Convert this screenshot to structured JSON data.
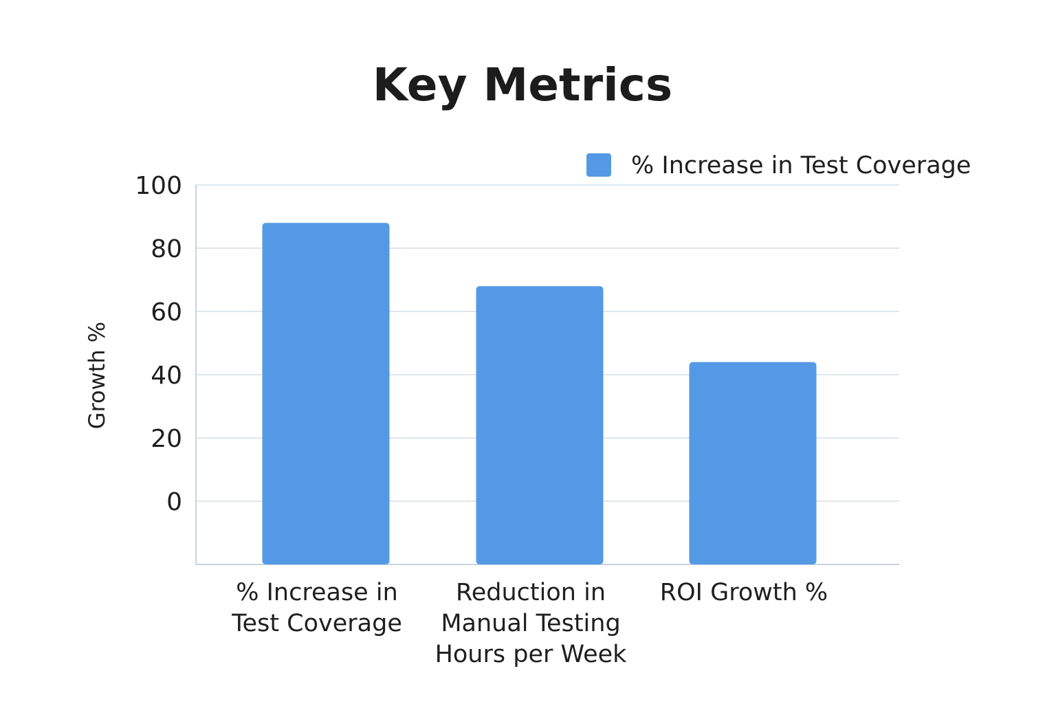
{
  "chart_data": {
    "type": "bar",
    "title": "Key Metrics",
    "categories": [
      [
        "% Increase in",
        "Test Coverage"
      ],
      [
        "Reduction in",
        "Manual Testing",
        "Hours per Week"
      ],
      [
        "ROI Growth %"
      ]
    ],
    "series": [
      {
        "name": "% Increase in Test Coverage",
        "values": [
          88,
          68,
          44
        ],
        "color": "#5499e5"
      }
    ],
    "xlabel": "",
    "ylabel": "Growth %",
    "yticks": [
      0,
      20,
      40,
      60,
      80,
      100
    ],
    "ylim": [
      -20,
      100
    ],
    "grid": true,
    "legend_position": "top-right"
  },
  "colors": {
    "bar": "#5499e5",
    "grid": "#d5dde6",
    "axis": "#c9d3de"
  }
}
